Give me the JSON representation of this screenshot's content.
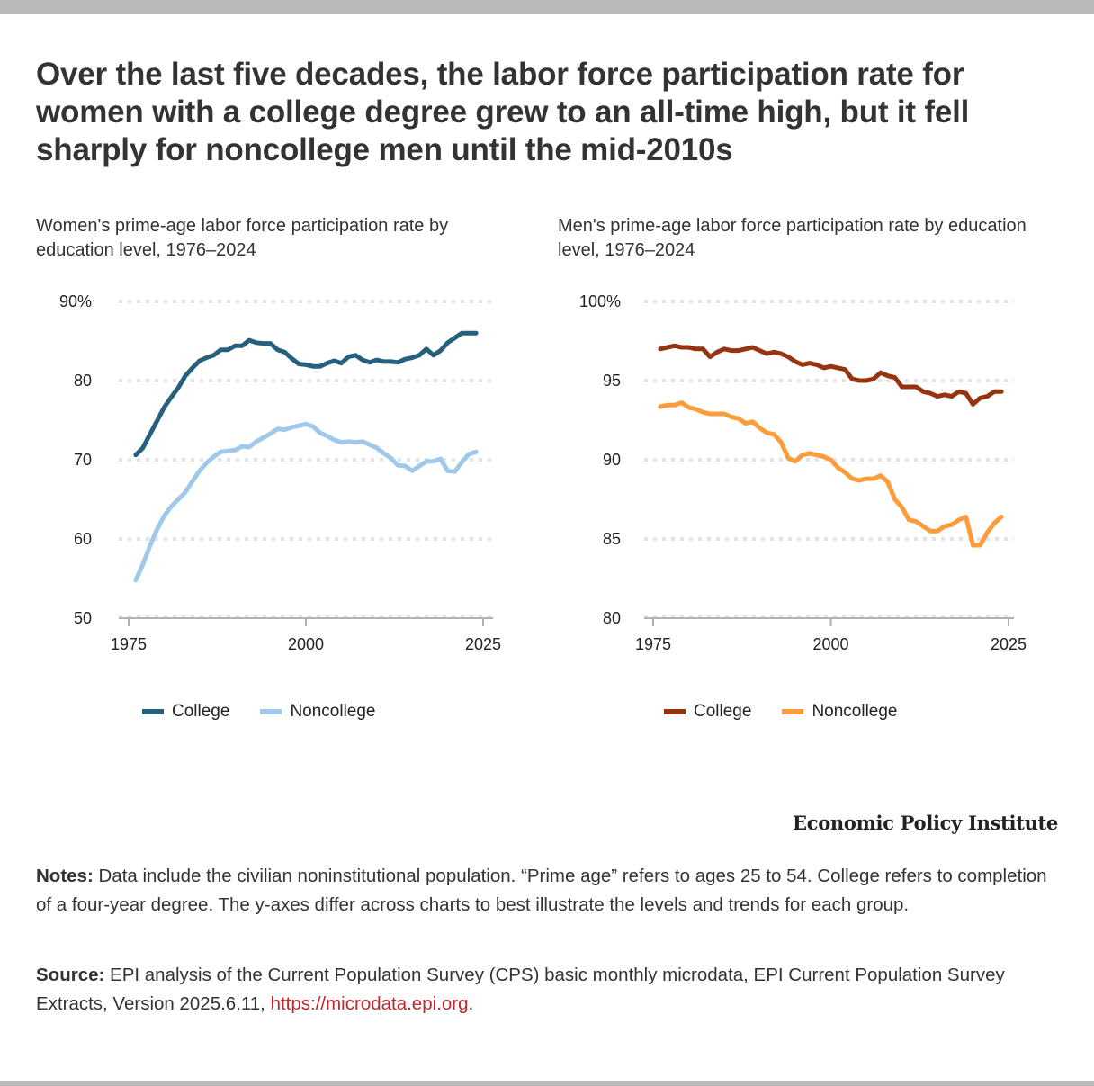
{
  "title": "Over the last five decades, the labor force participation rate for women with a college degree grew to an all-time high, but it fell sharply for noncollege men until the mid-2010s",
  "colors": {
    "women_college": "#27607f",
    "women_noncollege": "#a0c8eb",
    "men_college": "#973410",
    "men_noncollege": "#fd9c3b",
    "gridline": "#e3e3e3",
    "axis": "#b0b0b0",
    "link": "#c0272d"
  },
  "chart_data": [
    {
      "type": "line",
      "title": "Women's prime-age labor force participation rate by education level, 1976–2024",
      "xlabel": "",
      "ylabel": "",
      "xlim": [
        1975,
        2025
      ],
      "ylim": [
        50,
        90
      ],
      "x_ticks": [
        1975,
        2000,
        2025
      ],
      "x_tick_labels": [
        "1975",
        "2000",
        "2025"
      ],
      "y_ticks": [
        50,
        60,
        70,
        80,
        90
      ],
      "y_tick_labels": [
        "50",
        "60",
        "70",
        "80",
        "90%"
      ],
      "grid": true,
      "legend_position": "bottom",
      "x": [
        1976,
        1977,
        1978,
        1979,
        1980,
        1981,
        1982,
        1983,
        1984,
        1985,
        1986,
        1987,
        1988,
        1989,
        1990,
        1991,
        1992,
        1993,
        1994,
        1995,
        1996,
        1997,
        1998,
        1999,
        2000,
        2001,
        2002,
        2003,
        2004,
        2005,
        2006,
        2007,
        2008,
        2009,
        2010,
        2011,
        2012,
        2013,
        2014,
        2015,
        2016,
        2017,
        2018,
        2019,
        2020,
        2021,
        2022,
        2023,
        2024
      ],
      "series": [
        {
          "name": "College",
          "color": "#27607f",
          "values": [
            70.6,
            71.5,
            73.2,
            74.9,
            76.6,
            77.9,
            79.1,
            80.6,
            81.6,
            82.5,
            82.9,
            83.2,
            83.9,
            83.9,
            84.4,
            84.4,
            85.1,
            84.8,
            84.7,
            84.7,
            83.9,
            83.6,
            82.8,
            82.1,
            82.0,
            81.8,
            81.8,
            82.2,
            82.5,
            82.2,
            83.0,
            83.2,
            82.6,
            82.3,
            82.6,
            82.4,
            82.4,
            82.3,
            82.7,
            82.9,
            83.2,
            84.0,
            83.2,
            83.8,
            84.8,
            85.4,
            86.0,
            86.0,
            86.0
          ]
        },
        {
          "name": "Noncollege",
          "color": "#a0c8eb",
          "values": [
            54.8,
            56.8,
            59.1,
            61.2,
            62.9,
            64.1,
            65.0,
            65.9,
            67.3,
            68.6,
            69.6,
            70.4,
            71.0,
            71.1,
            71.2,
            71.7,
            71.6,
            72.3,
            72.8,
            73.3,
            73.9,
            73.8,
            74.1,
            74.3,
            74.5,
            74.2,
            73.4,
            73.0,
            72.5,
            72.2,
            72.3,
            72.2,
            72.3,
            71.9,
            71.5,
            70.8,
            70.2,
            69.3,
            69.2,
            68.6,
            69.2,
            69.8,
            69.8,
            70.1,
            68.6,
            68.5,
            69.7,
            70.7,
            71.0
          ]
        }
      ]
    },
    {
      "type": "line",
      "title": "Men's prime-age labor force participation rate by education level, 1976–2024",
      "xlabel": "",
      "ylabel": "",
      "xlim": [
        1975,
        2025
      ],
      "ylim": [
        80,
        100
      ],
      "x_ticks": [
        1975,
        2000,
        2025
      ],
      "x_tick_labels": [
        "1975",
        "2000",
        "2025"
      ],
      "y_ticks": [
        80,
        85,
        90,
        95,
        100
      ],
      "y_tick_labels": [
        "80",
        "85",
        "90",
        "95",
        "100%"
      ],
      "grid": true,
      "legend_position": "bottom",
      "x": [
        1976,
        1977,
        1978,
        1979,
        1980,
        1981,
        1982,
        1983,
        1984,
        1985,
        1986,
        1987,
        1988,
        1989,
        1990,
        1991,
        1992,
        1993,
        1994,
        1995,
        1996,
        1997,
        1998,
        1999,
        2000,
        2001,
        2002,
        2003,
        2004,
        2005,
        2006,
        2007,
        2008,
        2009,
        2010,
        2011,
        2012,
        2013,
        2014,
        2015,
        2016,
        2017,
        2018,
        2019,
        2020,
        2021,
        2022,
        2023,
        2024
      ],
      "series": [
        {
          "name": "College",
          "color": "#973410",
          "values": [
            97.0,
            97.1,
            97.2,
            97.1,
            97.1,
            97.0,
            97.0,
            96.5,
            96.8,
            97.0,
            96.9,
            96.9,
            97.0,
            97.1,
            96.9,
            96.7,
            96.8,
            96.7,
            96.5,
            96.2,
            96.0,
            96.1,
            96.0,
            95.8,
            95.9,
            95.8,
            95.7,
            95.1,
            95.0,
            95.0,
            95.1,
            95.5,
            95.3,
            95.2,
            94.6,
            94.6,
            94.6,
            94.3,
            94.2,
            94.0,
            94.1,
            94.0,
            94.3,
            94.2,
            93.5,
            93.9,
            94.0,
            94.3,
            94.3
          ]
        },
        {
          "name": "Noncollege",
          "color": "#fd9c3b",
          "values": [
            93.35,
            93.45,
            93.45,
            93.6,
            93.3,
            93.2,
            93.0,
            92.9,
            92.9,
            92.9,
            92.7,
            92.6,
            92.3,
            92.4,
            92.0,
            91.7,
            91.6,
            91.1,
            90.1,
            89.9,
            90.3,
            90.4,
            90.3,
            90.2,
            90.0,
            89.5,
            89.2,
            88.8,
            88.7,
            88.8,
            88.8,
            89.0,
            88.6,
            87.5,
            87.0,
            86.2,
            86.1,
            85.8,
            85.5,
            85.5,
            85.8,
            85.9,
            86.2,
            86.4,
            84.6,
            84.6,
            85.4,
            86.0,
            86.4
          ]
        }
      ]
    }
  ],
  "legend_left": [
    {
      "label": "College",
      "color": "#27607f"
    },
    {
      "label": "Noncollege",
      "color": "#a0c8eb"
    }
  ],
  "legend_right": [
    {
      "label": "College",
      "color": "#973410"
    },
    {
      "label": "Noncollege",
      "color": "#fd9c3b"
    }
  ],
  "logo": "Economic Policy Institute",
  "notes": {
    "label": "Notes:",
    "text": " Data include the civilian noninstitutional population. “Prime age” refers to ages 25 to 54. College refers to completion of a four-year degree. The y-axes differ across charts to best illustrate the levels and trends for each group."
  },
  "source": {
    "label": "Source:",
    "text": " EPI analysis of the Current Population Survey (CPS) basic monthly microdata, EPI Current Population Survey Extracts, Version 2025.6.11, ",
    "link": "https://microdata.epi.org",
    "after": "."
  }
}
